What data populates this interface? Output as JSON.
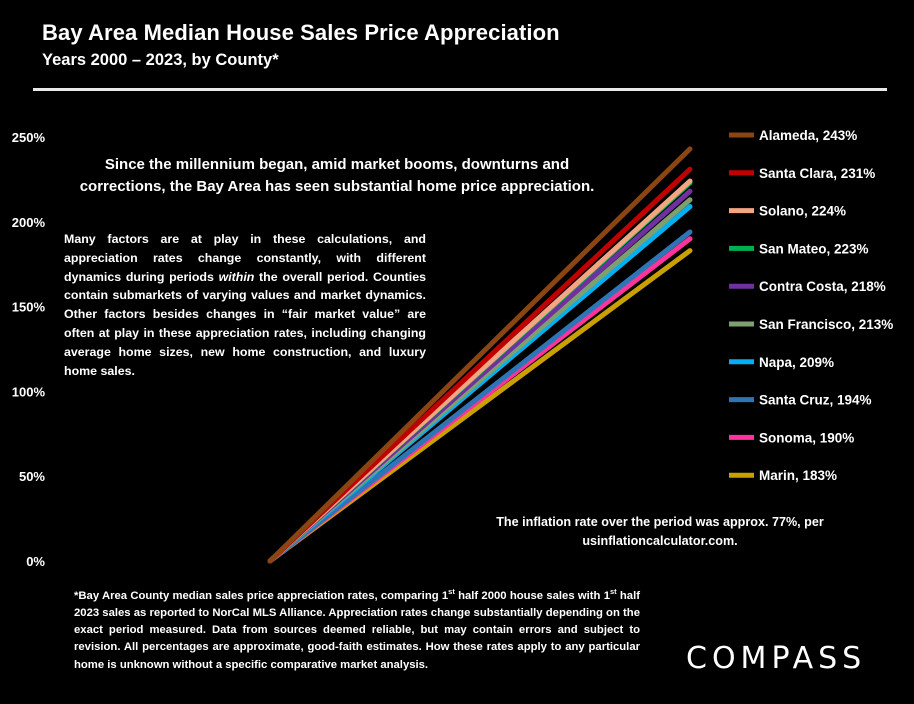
{
  "header": {
    "title": "Bay Area Median House Sales Price Appreciation",
    "subtitle": "Years 2000 – 2023, by County*"
  },
  "callout": "Since the millennium began, amid market booms, downturns and corrections, the Bay Area has seen substantial home price appreciation.",
  "factors": {
    "before_within": "Many factors are at play in these calculations, and appreciation rates change constantly, with different dynamics during periods ",
    "within": "within",
    "after_within": " the overall period. Counties contain submarkets of varying values and market dynamics. Other factors besides changes in “fair market value” are often at play in these appreciation rates, including  changing average home sizes, new home construction, and luxury home sales."
  },
  "inflation_note": "The inflation rate over the period was approx. 77%, per usinflationcalculator.com.",
  "footnote": {
    "p1": "*Bay Area County median sales price appreciation rates, comparing 1",
    "sup1": "st",
    "p2": " half 2000 house sales with 1",
    "sup2": "st",
    "p3": " half 2023 sales as reported to NorCal MLS Alliance. Appreciation rates change substantially depending on the exact period measured. Data from sources deemed reliable, but may contain errors and subject to revision. All percentages are approximate, good-faith estimates. How these rates apply to any particular home is unknown without a specific comparative market analysis."
  },
  "logo": "COMPASS",
  "chart_data": {
    "type": "line",
    "x": [
      "2000",
      "2023"
    ],
    "ylim": [
      0,
      250
    ],
    "yticks": [
      0,
      50,
      100,
      150,
      200,
      250
    ],
    "ytick_labels": [
      "0%",
      "50%",
      "100%",
      "150%",
      "200%",
      "250%"
    ],
    "grid": false,
    "legend": "right",
    "series": [
      {
        "name": "Alameda, 243%",
        "values": [
          0,
          243
        ],
        "color": "#8b4513"
      },
      {
        "name": "Santa Clara, 231%",
        "values": [
          0,
          231
        ],
        "color": "#c00000"
      },
      {
        "name": "Solano, 224%",
        "values": [
          0,
          224
        ],
        "color": "#f4a582"
      },
      {
        "name": "San Mateo, 223%",
        "values": [
          0,
          223
        ],
        "color": "#00b050"
      },
      {
        "name": "Contra Costa, 218%",
        "values": [
          0,
          218
        ],
        "color": "#7030a0"
      },
      {
        "name": "San Francisco, 213%",
        "values": [
          0,
          213
        ],
        "color": "#7f9f6f"
      },
      {
        "name": "Napa, 209%",
        "values": [
          0,
          209
        ],
        "color": "#00b0f0"
      },
      {
        "name": "Santa Cruz, 194%",
        "values": [
          0,
          194
        ],
        "color": "#2e75b6"
      },
      {
        "name": "Sonoma, 190%",
        "values": [
          0,
          190
        ],
        "color": "#ff3399"
      },
      {
        "name": "Marin, 183%",
        "values": [
          0,
          183
        ],
        "color": "#c9a000"
      }
    ]
  }
}
